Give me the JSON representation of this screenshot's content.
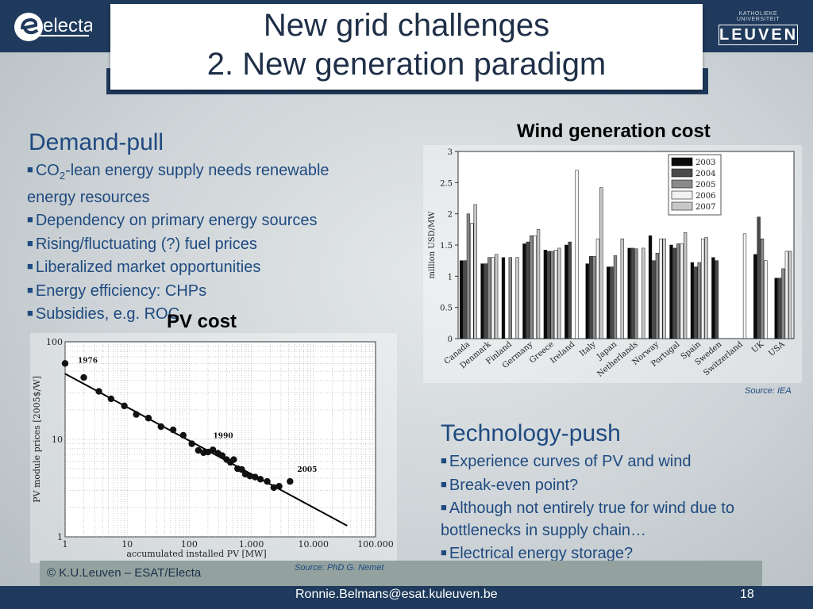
{
  "slide": {
    "title_line1": "New grid challenges",
    "title_line2": "2. New generation paradigm",
    "logo_left": "electa",
    "logo_right_small": "KATHOLIEKE UNIVERSITEIT",
    "logo_right": "LEUVEN"
  },
  "demand": {
    "heading": "Demand-pull",
    "b1_pre": "CO",
    "b1_sub": "2",
    "b1_post": "-lean energy supply needs renewable",
    "b1_cont": "energy resources",
    "b2": "Dependency on primary energy sources",
    "b3": "Rising/fluctuating (?) fuel prices",
    "b4": "Liberalized market opportunities",
    "b5": "Energy efficiency: CHPs",
    "b6": "Subsidies, e.g. ROC"
  },
  "technology": {
    "heading": "Technology-push",
    "b1": "Experience curves of PV and wind",
    "b2": "Break-even point?",
    "b3": "Although not entirely true for wind due  to",
    "b3_cont": "bottlenecks in supply chain…",
    "b4": "Electrical energy storage?"
  },
  "footer": {
    "copyright": "© K.U.Leuven – ESAT/Electa",
    "email": "Ronnie.Belmans@esat.kuleuven.be",
    "page": "18",
    "source_pv": "Source: PhD G. Nemet",
    "source_wind": "Source: IEA"
  },
  "chart_data": [
    {
      "type": "bar",
      "title": "Wind generation cost",
      "ylabel": "million USD/MW",
      "ylim": [
        0,
        3
      ],
      "yticks": [
        "0",
        "0.5",
        "1",
        "1.5",
        "2",
        "2.5",
        "3"
      ],
      "legend_position": "top-right",
      "categories": [
        "Canada",
        "Denmark",
        "Finland",
        "Germany",
        "Greece",
        "Ireland",
        "Italy",
        "Japan",
        "Netherlands",
        "Norway",
        "Portugal",
        "Spain",
        "Sweden",
        "Switzerland",
        "UK",
        "USA"
      ],
      "series": [
        {
          "name": "2003",
          "color": "#0a0a0a",
          "values": [
            1.25,
            1.2,
            1.3,
            1.52,
            1.42,
            1.5,
            1.2,
            1.15,
            1.45,
            1.65,
            1.5,
            1.22,
            1.3,
            null,
            1.35,
            0.97
          ]
        },
        {
          "name": "2004",
          "color": "#4a4a4a",
          "values": [
            1.25,
            1.2,
            null,
            1.55,
            1.4,
            1.55,
            1.32,
            1.15,
            1.45,
            1.25,
            1.45,
            1.15,
            1.25,
            null,
            1.95,
            0.97
          ]
        },
        {
          "name": "2005",
          "color": "#8a8a8a",
          "values": [
            2.0,
            1.3,
            1.3,
            1.65,
            1.4,
            null,
            1.32,
            1.33,
            1.44,
            1.37,
            1.52,
            1.22,
            null,
            null,
            1.6,
            1.12
          ]
        },
        {
          "name": "2006",
          "color": "#f2f2f2",
          "values": [
            1.85,
            1.3,
            null,
            1.65,
            1.42,
            2.7,
            1.6,
            null,
            null,
            1.6,
            1.52,
            1.6,
            null,
            1.68,
            1.25,
            1.4
          ]
        },
        {
          "name": "2007",
          "color": "#c8c8c8",
          "values": [
            2.15,
            1.35,
            1.3,
            1.75,
            1.45,
            null,
            2.42,
            1.6,
            1.45,
            1.6,
            1.7,
            1.62,
            null,
            null,
            null,
            1.4
          ]
        }
      ]
    },
    {
      "type": "scatter",
      "title": "PV cost",
      "xlabel": "accumulated installed PV [MW]",
      "ylabel": "PV module prices [2005$/W]",
      "x_scale": "log",
      "y_scale": "log",
      "xlim": [
        1,
        100000
      ],
      "ylim": [
        1,
        100
      ],
      "xticks": [
        "1",
        "10",
        "100",
        "1.000",
        "10.000",
        "100.000"
      ],
      "yticks": [
        "1",
        "10",
        "100"
      ],
      "annotations": [
        "1976",
        "1990",
        "2005"
      ],
      "points": [
        {
          "x": 1.0,
          "y": 60
        },
        {
          "x": 2.0,
          "y": 43
        },
        {
          "x": 3.5,
          "y": 31
        },
        {
          "x": 5.5,
          "y": 26
        },
        {
          "x": 9,
          "y": 22
        },
        {
          "x": 14,
          "y": 18
        },
        {
          "x": 22,
          "y": 16.5
        },
        {
          "x": 35,
          "y": 13.5
        },
        {
          "x": 55,
          "y": 12.5
        },
        {
          "x": 80,
          "y": 11
        },
        {
          "x": 110,
          "y": 9
        },
        {
          "x": 140,
          "y": 7.7
        },
        {
          "x": 170,
          "y": 7.3
        },
        {
          "x": 200,
          "y": 7.4
        },
        {
          "x": 240,
          "y": 7.8
        },
        {
          "x": 290,
          "y": 7.2
        },
        {
          "x": 340,
          "y": 6.8
        },
        {
          "x": 400,
          "y": 6.2
        },
        {
          "x": 460,
          "y": 5.8
        },
        {
          "x": 520,
          "y": 6.2
        },
        {
          "x": 600,
          "y": 5.0
        },
        {
          "x": 700,
          "y": 4.9
        },
        {
          "x": 800,
          "y": 4.4
        },
        {
          "x": 950,
          "y": 4.2
        },
        {
          "x": 1150,
          "y": 4.1
        },
        {
          "x": 1400,
          "y": 3.9
        },
        {
          "x": 1800,
          "y": 3.7
        },
        {
          "x": 2300,
          "y": 3.2
        },
        {
          "x": 2800,
          "y": 3.3
        },
        {
          "x": 4200,
          "y": 3.7
        }
      ],
      "trendline": [
        {
          "x": 1,
          "y": 47
        },
        {
          "x": 35000,
          "y": 1.3
        }
      ]
    }
  ]
}
